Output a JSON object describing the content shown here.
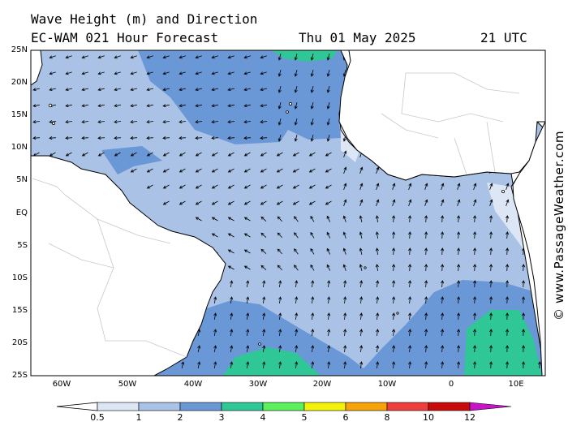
{
  "title": {
    "line1": "Wave Height (m) and Direction",
    "line2": "EC-WAM 021 Hour Forecast",
    "date": "Thu 01 May 2025",
    "time": "21 UTC"
  },
  "watermark": "© www.PassageWeather.com",
  "axes": {
    "lat_labels": [
      "25N",
      "20N",
      "15N",
      "10N",
      "5N",
      "EQ",
      "5S",
      "10S",
      "15S",
      "20S",
      "25S"
    ],
    "lon_labels": [
      "60W",
      "50W",
      "40W",
      "30W",
      "20W",
      "10W",
      "0",
      "10E"
    ]
  },
  "colorbar": {
    "labels": [
      "0.5",
      "1",
      "2",
      "3",
      "4",
      "5",
      "6",
      "8",
      "10",
      "12"
    ],
    "colors": [
      "#dde6f5",
      "#a9c2e6",
      "#6a97d6",
      "#2ec795",
      "#5cf05c",
      "#f2f20a",
      "#f6a30a",
      "#ee3e3e",
      "#c80a0a",
      "#c814c8"
    ]
  },
  "colors": {
    "ocean_low": "#a9c2e6",
    "ocean_calm": "#dde6f5",
    "ocean_mid": "#6a97d6",
    "ocean_high": "#2ec795",
    "land": "#ffffff",
    "coast": "#000000",
    "border": "#c8c8c8"
  }
}
